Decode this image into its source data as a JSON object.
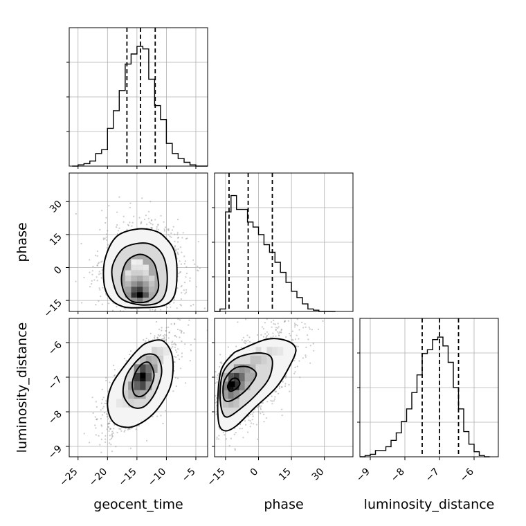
{
  "chart_data": {
    "type": "corner",
    "parameters": [
      "geocent_time",
      "phase",
      "luminosity_distance"
    ],
    "grid": true,
    "marginals": [
      {
        "name": "geocent_time",
        "bin_edges": [
          -26,
          -25,
          -24,
          -23,
          -22,
          -21,
          -20,
          -19,
          -18,
          -17,
          -16,
          -15,
          -14,
          -13,
          -12,
          -11,
          -10,
          -9,
          -8,
          -7,
          -6,
          -5,
          -4,
          -3
        ],
        "counts": [
          0.0,
          0.01,
          0.02,
          0.04,
          0.1,
          0.13,
          0.3,
          0.44,
          0.6,
          0.81,
          0.89,
          0.95,
          0.93,
          0.69,
          0.48,
          0.37,
          0.18,
          0.1,
          0.06,
          0.03,
          0.01,
          0.0,
          0.0
        ],
        "quantiles": [
          -16.7,
          -14.4,
          -11.9
        ],
        "xlim": [
          -26.5,
          -3
        ]
      },
      {
        "name": "phase",
        "bin_edges": [
          -20,
          -17.5,
          -15,
          -12.5,
          -10,
          -7.5,
          -5,
          -2.5,
          0,
          2.5,
          5,
          7.5,
          10,
          12.5,
          15,
          17.5,
          20,
          22.5,
          25,
          27.5,
          30,
          32.5,
          35
        ],
        "counts": [
          0.0,
          0.02,
          0.79,
          0.92,
          0.81,
          0.81,
          0.71,
          0.67,
          0.61,
          0.53,
          0.47,
          0.39,
          0.31,
          0.23,
          0.16,
          0.11,
          0.06,
          0.02,
          0.01,
          0.0,
          0.0,
          0.0
        ],
        "quantiles": [
          -13.4,
          -4.7,
          6.3
        ],
        "xlim": [
          -20,
          43
        ]
      },
      {
        "name": "luminosity_distance",
        "bin_edges": [
          -9.3,
          -9.15,
          -9.0,
          -8.85,
          -8.7,
          -8.55,
          -8.4,
          -8.25,
          -8.1,
          -7.95,
          -7.8,
          -7.65,
          -7.5,
          -7.35,
          -7.2,
          -7.05,
          -6.9,
          -6.75,
          -6.6,
          -6.45,
          -6.3,
          -6.15,
          -6.0,
          -5.85,
          -5.7,
          -5.55
        ],
        "counts": [
          0.0,
          0.01,
          0.02,
          0.05,
          0.05,
          0.08,
          0.13,
          0.19,
          0.28,
          0.38,
          0.51,
          0.65,
          0.82,
          0.85,
          0.93,
          0.95,
          0.88,
          0.75,
          0.55,
          0.38,
          0.2,
          0.1,
          0.04,
          0.01,
          0.0
        ],
        "quantiles": [
          -7.5,
          -7.0,
          -6.45
        ],
        "xlim": [
          -9.3,
          -5.3
        ]
      }
    ],
    "joint": [
      {
        "x": "geocent_time",
        "y": "phase",
        "xlim": [
          -26.5,
          -3
        ],
        "ylim": [
          -20,
          43
        ],
        "yticks": [
          -15,
          0,
          15,
          30
        ],
        "peak": [
          -14.5,
          -12.5
        ],
        "contours": [
          [
            [
              -14.5,
              -16
            ],
            [
              -12.6,
              -14.6
            ],
            [
              -11.4,
              -10
            ],
            [
              -11.5,
              -4
            ],
            [
              -12.1,
              2
            ],
            [
              -13.6,
              5.5
            ],
            [
              -15.2,
              5.6
            ],
            [
              -16.8,
              2.5
            ],
            [
              -17.6,
              -4
            ],
            [
              -17.3,
              -10.5
            ],
            [
              -16.2,
              -14.8
            ]
          ],
          [
            [
              -14.4,
              -17
            ],
            [
              -11.4,
              -16
            ],
            [
              -10.1,
              -11
            ],
            [
              -9.9,
              -2
            ],
            [
              -10.7,
              6
            ],
            [
              -12.6,
              10.5
            ],
            [
              -15.2,
              10.8
            ],
            [
              -17.6,
              8
            ],
            [
              -19.2,
              0
            ],
            [
              -18.8,
              -9
            ],
            [
              -17.5,
              -14.5
            ]
          ],
          [
            [
              -14.4,
              -18.3
            ],
            [
              -10.6,
              -17.4
            ],
            [
              -8.7,
              -13
            ],
            [
              -8.2,
              -3
            ],
            [
              -8.6,
              7
            ],
            [
              -10.0,
              13
            ],
            [
              -11.8,
              16.5
            ],
            [
              -15.0,
              17.5
            ],
            [
              -18.5,
              14
            ],
            [
              -20.4,
              4
            ],
            [
              -20.6,
              -7
            ],
            [
              -19.6,
              -14
            ],
            [
              -17.4,
              -17.8
            ]
          ]
        ],
        "density_cells": [
          [
            -14.5,
            -12.5,
            1.0
          ],
          [
            -15.5,
            -12.5,
            0.85
          ],
          [
            -13.5,
            -12.5,
            0.7
          ],
          [
            -14.5,
            -10,
            0.8
          ],
          [
            -15.5,
            -10,
            0.7
          ],
          [
            -13.5,
            -10,
            0.5
          ],
          [
            -16.5,
            -12.5,
            0.45
          ],
          [
            -12.5,
            -12.5,
            0.35
          ],
          [
            -14.5,
            -7.5,
            0.55
          ],
          [
            -15.5,
            -7.5,
            0.45
          ],
          [
            -13.5,
            -7.5,
            0.4
          ],
          [
            -16.5,
            -10,
            0.4
          ],
          [
            -16.5,
            -7.5,
            0.3
          ],
          [
            -14.5,
            -5,
            0.35
          ],
          [
            -15.5,
            -5,
            0.3
          ],
          [
            -13.5,
            -5,
            0.25
          ],
          [
            -12.5,
            -10,
            0.3
          ],
          [
            -12.5,
            -7.5,
            0.25
          ],
          [
            -14.5,
            -2.5,
            0.2
          ],
          [
            -15.5,
            -2.5,
            0.2
          ],
          [
            -13.5,
            -2.5,
            0.15
          ],
          [
            -16.5,
            -5,
            0.2
          ],
          [
            -12.5,
            -5,
            0.18
          ],
          [
            -14.5,
            0,
            0.12
          ],
          [
            -15.5,
            0,
            0.12
          ],
          [
            -16.5,
            -2.5,
            0.12
          ],
          [
            -13.5,
            0,
            0.1
          ],
          [
            -14.5,
            -15,
            0.55
          ],
          [
            -15.5,
            -15,
            0.45
          ],
          [
            -13.5,
            -15,
            0.35
          ],
          [
            -14.5,
            2.5,
            0.08
          ],
          [
            -15.5,
            2.5,
            0.06
          ]
        ]
      },
      {
        "x": "geocent_time",
        "y": "luminosity_distance",
        "xlim": [
          -26.5,
          -3
        ],
        "ylim": [
          -9.3,
          -5.3
        ],
        "xticks": [
          -25,
          -20,
          -15,
          -10,
          -5
        ],
        "yticks": [
          -9,
          -8,
          -7,
          -6
        ],
        "peak": [
          -14,
          -6.95
        ],
        "contours": [
          [
            [
              -14.0,
              -6.6
            ],
            [
              -12.8,
              -6.6
            ],
            [
              -12.1,
              -6.95
            ],
            [
              -12.9,
              -7.35
            ],
            [
              -14.2,
              -7.55
            ],
            [
              -15.4,
              -7.5
            ],
            [
              -15.8,
              -7.2
            ],
            [
              -15.2,
              -6.85
            ]
          ],
          [
            [
              -13.6,
              -6.35
            ],
            [
              -11.6,
              -6.4
            ],
            [
              -10.8,
              -6.85
            ],
            [
              -11.9,
              -7.45
            ],
            [
              -13.8,
              -7.85
            ],
            [
              -15.9,
              -7.85
            ],
            [
              -17.3,
              -7.5
            ],
            [
              -16.9,
              -7.0
            ],
            [
              -15.4,
              -6.6
            ]
          ],
          [
            [
              -13.2,
              -6.0
            ],
            [
              -10.6,
              -5.95
            ],
            [
              -9.0,
              -6.4
            ],
            [
              -9.2,
              -7.2
            ],
            [
              -11.2,
              -7.85
            ],
            [
              -13.6,
              -8.25
            ],
            [
              -16.4,
              -8.45
            ],
            [
              -19.0,
              -8.3
            ],
            [
              -20.0,
              -7.8
            ],
            [
              -19.2,
              -7.2
            ],
            [
              -16.8,
              -6.6
            ],
            [
              -14.8,
              -6.2
            ]
          ]
        ],
        "density_cells": [
          [
            -14,
            -7.0,
            1.0
          ],
          [
            -15,
            -7.0,
            0.8
          ],
          [
            -13,
            -7.0,
            0.7
          ],
          [
            -14,
            -6.75,
            0.75
          ],
          [
            -14,
            -7.25,
            0.75
          ],
          [
            -15,
            -7.25,
            0.65
          ],
          [
            -13,
            -6.75,
            0.6
          ],
          [
            -16,
            -7.25,
            0.4
          ],
          [
            -12,
            -6.75,
            0.4
          ],
          [
            -15,
            -6.75,
            0.5
          ],
          [
            -13,
            -7.25,
            0.45
          ],
          [
            -16,
            -7.5,
            0.3
          ],
          [
            -15,
            -7.5,
            0.4
          ],
          [
            -14,
            -7.5,
            0.35
          ],
          [
            -12,
            -6.5,
            0.3
          ],
          [
            -13,
            -6.5,
            0.35
          ],
          [
            -14,
            -6.5,
            0.25
          ],
          [
            -17,
            -7.5,
            0.2
          ],
          [
            -16,
            -7.75,
            0.18
          ],
          [
            -11,
            -6.5,
            0.2
          ],
          [
            -11,
            -6.25,
            0.15
          ],
          [
            -12,
            -6.25,
            0.18
          ],
          [
            -17,
            -7.75,
            0.12
          ],
          [
            -18,
            -7.75,
            0.1
          ],
          [
            -10,
            -6.25,
            0.1
          ]
        ]
      },
      {
        "x": "phase",
        "y": "luminosity_distance",
        "xlim": [
          -20,
          43
        ],
        "ylim": [
          -9.3,
          -5.3
        ],
        "xticks": [
          -15,
          0,
          15,
          30
        ],
        "peak": [
          -12,
          -7.2
        ],
        "contours": [
          [
            [
              -12.0,
              -7.05
            ],
            [
              -9.5,
              -7.05
            ],
            [
              -8.5,
              -7.2
            ],
            [
              -10.5,
              -7.35
            ],
            [
              -13.0,
              -7.4
            ],
            [
              -14.0,
              -7.25
            ]
          ],
          [
            [
              -11.0,
              -6.75
            ],
            [
              -5.0,
              -6.7
            ],
            [
              -1.0,
              -6.9
            ],
            [
              -4.0,
              -7.25
            ],
            [
              -9.0,
              -7.55
            ],
            [
              -14.0,
              -7.7
            ],
            [
              -16.0,
              -7.55
            ],
            [
              -15.5,
              -7.1
            ]
          ],
          [
            [
              -10.0,
              -6.45
            ],
            [
              0.0,
              -6.3
            ],
            [
              6.0,
              -6.45
            ],
            [
              5.0,
              -7.0
            ],
            [
              -1.0,
              -7.5
            ],
            [
              -8.0,
              -7.9
            ],
            [
              -14.0,
              -8.15
            ],
            [
              -16.5,
              -8.0
            ],
            [
              -17.5,
              -7.5
            ],
            [
              -16.0,
              -6.85
            ]
          ],
          [
            [
              -8.0,
              -6.2
            ],
            [
              4.0,
              -5.9
            ],
            [
              13.0,
              -5.95
            ],
            [
              17.0,
              -6.2
            ],
            [
              14.0,
              -6.7
            ],
            [
              8.0,
              -7.3
            ],
            [
              -2.0,
              -7.9
            ],
            [
              -10.0,
              -8.4
            ],
            [
              -15.0,
              -8.55
            ],
            [
              -18.0,
              -8.35
            ],
            [
              -18.5,
              -7.6
            ],
            [
              -17.0,
              -6.8
            ],
            [
              -12.0,
              -6.35
            ]
          ]
        ],
        "density_cells": [
          [
            -12.5,
            -7.25,
            1.0
          ],
          [
            -10,
            -7.25,
            0.85
          ],
          [
            -12.5,
            -7.0,
            0.7
          ],
          [
            -10,
            -7.0,
            0.8
          ],
          [
            -7.5,
            -7.0,
            0.6
          ],
          [
            -15,
            -7.25,
            0.5
          ],
          [
            -15,
            -7.5,
            0.4
          ],
          [
            -12.5,
            -7.5,
            0.55
          ],
          [
            -10,
            -7.5,
            0.45
          ],
          [
            -7.5,
            -7.25,
            0.5
          ],
          [
            -5,
            -6.75,
            0.4
          ],
          [
            -5,
            -7.0,
            0.35
          ],
          [
            -7.5,
            -6.75,
            0.45
          ],
          [
            -10,
            -6.75,
            0.4
          ],
          [
            -2.5,
            -6.75,
            0.3
          ],
          [
            -2.5,
            -6.5,
            0.25
          ],
          [
            0,
            -6.5,
            0.25
          ],
          [
            2.5,
            -6.5,
            0.2
          ],
          [
            -12.5,
            -7.75,
            0.3
          ],
          [
            -15,
            -7.75,
            0.25
          ],
          [
            -10,
            -7.75,
            0.25
          ],
          [
            5,
            -6.25,
            0.15
          ],
          [
            7.5,
            -6.25,
            0.12
          ],
          [
            10,
            -6.25,
            0.1
          ],
          [
            0,
            -6.25,
            0.15
          ],
          [
            -5,
            -7.25,
            0.3
          ],
          [
            -15,
            -7.0,
            0.3
          ],
          [
            -17.5,
            -7.5,
            0.2
          ],
          [
            -17.5,
            -7.25,
            0.15
          ]
        ]
      }
    ]
  }
}
